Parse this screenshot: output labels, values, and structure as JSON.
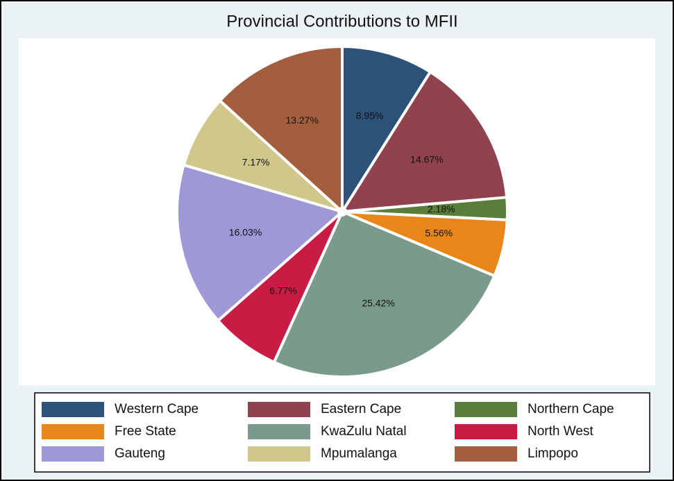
{
  "chart_data": {
    "type": "pie",
    "title": "Provincial Contributions to MFII",
    "categories": [
      "Western Cape",
      "Eastern Cape",
      "Northern Cape",
      "Free State",
      "KwaZulu Natal",
      "North West",
      "Gauteng",
      "Mpumalanga",
      "Limpopo"
    ],
    "values": [
      8.95,
      14.67,
      2.18,
      5.56,
      25.42,
      6.77,
      16.03,
      7.17,
      13.27
    ],
    "value_labels": [
      "8.95%",
      "14.67%",
      "2.18%",
      "5.56%",
      "25.42%",
      "6.77%",
      "16.03%",
      "7.17%",
      "13.27%"
    ],
    "colors": [
      "#2d5279",
      "#90434e",
      "#5a7d3a",
      "#e8861a",
      "#7a9a8c",
      "#c81c44",
      "#9e98d6",
      "#d0c88a",
      "#a35f3d"
    ],
    "legend": "bottom"
  }
}
